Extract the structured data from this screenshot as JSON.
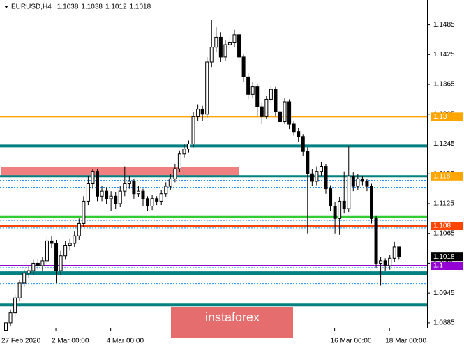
{
  "chart_data": {
    "type": "candlestick",
    "title": "EURUSD,H4",
    "open": [
      1.087,
      1.0885,
      1.0905,
      1.0935,
      1.0965,
      1.0985,
      1.099,
      1.1005,
      1.1,
      1.101,
      1.105,
      1.1045,
      1.099,
      1.102,
      1.104,
      1.1045,
      1.106,
      1.1085,
      1.113,
      1.1165,
      1.119,
      1.114,
      1.115,
      1.1135,
      1.114,
      1.1125,
      1.115,
      1.1165,
      1.117,
      1.1145,
      1.115,
      1.1135,
      1.112,
      1.1135,
      1.113,
      1.1145,
      1.116,
      1.1175,
      1.1195,
      1.1225,
      1.1235,
      1.1245,
      1.13,
      1.1315,
      1.1305,
      1.141,
      1.144,
      1.146,
      1.142,
      1.1445,
      1.145,
      1.1465,
      1.142,
      1.138,
      1.1345,
      1.136,
      1.132,
      1.13,
      1.1335,
      1.1355,
      1.131,
      1.129,
      1.133,
      1.1285,
      1.127,
      1.126,
      1.123,
      1.1185,
      1.117,
      1.119,
      1.12,
      1.1155,
      1.112,
      1.1095,
      1.113,
      1.1115,
      1.118,
      1.116,
      1.1175,
      1.117,
      1.116,
      1.1095,
      1.1005,
      1.101,
      1.1,
      1.1015,
      1.1038
    ],
    "high": [
      1.0893,
      1.0912,
      1.0942,
      1.0972,
      1.0992,
      1.1,
      1.1012,
      1.1013,
      1.1018,
      1.1058,
      1.106,
      1.1052,
      1.103,
      1.105,
      1.1055,
      1.107,
      1.1095,
      1.114,
      1.118,
      1.1195,
      1.1195,
      1.116,
      1.1158,
      1.115,
      1.1148,
      1.116,
      1.12,
      1.118,
      1.1175,
      1.116,
      1.1155,
      1.114,
      1.1142,
      1.114,
      1.1152,
      1.1168,
      1.1185,
      1.1205,
      1.1232,
      1.1245,
      1.1252,
      1.131,
      1.1325,
      1.1322,
      1.142,
      1.1495,
      1.148,
      1.147,
      1.1455,
      1.1462,
      1.1475,
      1.147,
      1.1425,
      1.1388,
      1.137,
      1.1365,
      1.1328,
      1.1342,
      1.1362,
      1.136,
      1.1318,
      1.1338,
      1.1335,
      1.1292,
      1.1278,
      1.1265,
      1.1238,
      1.1195,
      1.12,
      1.1208,
      1.1205,
      1.1162,
      1.1128,
      1.1138,
      1.119,
      1.124,
      1.1188,
      1.1185,
      1.118,
      1.1175,
      1.1165,
      1.11,
      1.1018,
      1.1015,
      1.1022,
      1.1048,
      1.1038
    ],
    "low": [
      1.0862,
      1.0878,
      1.0898,
      1.0928,
      1.0958,
      1.0975,
      1.0982,
      1.0992,
      1.099,
      1.1002,
      1.1035,
      1.0965,
      1.0982,
      1.1012,
      1.103,
      1.1038,
      1.1052,
      1.1078,
      1.1122,
      1.1155,
      1.113,
      1.113,
      1.1125,
      1.111,
      1.1115,
      1.1118,
      1.114,
      1.1155,
      1.1135,
      1.1138,
      1.112,
      1.111,
      1.1112,
      1.1122,
      1.1122,
      1.1138,
      1.1152,
      1.1168,
      1.1188,
      1.1218,
      1.1228,
      1.1238,
      1.1292,
      1.1292,
      1.1298,
      1.14,
      1.143,
      1.141,
      1.1412,
      1.1438,
      1.144,
      1.141,
      1.137,
      1.1335,
      1.1338,
      1.13,
      1.1285,
      1.1295,
      1.1328,
      1.13,
      1.128,
      1.1285,
      1.1275,
      1.1262,
      1.125,
      1.1222,
      1.1065,
      1.116,
      1.1162,
      1.118,
      1.1145,
      1.111,
      1.1065,
      1.1062,
      1.1105,
      1.1108,
      1.115,
      1.1152,
      1.1162,
      1.115,
      1.1085,
      1.0995,
      1.096,
      1.099,
      1.0992,
      1.1008,
      1.1012
    ],
    "close": [
      1.0885,
      1.0905,
      1.0935,
      1.0965,
      1.0985,
      1.099,
      1.1005,
      1.1,
      1.101,
      1.105,
      1.1045,
      1.099,
      1.102,
      1.104,
      1.1045,
      1.106,
      1.1085,
      1.113,
      1.1165,
      1.119,
      1.114,
      1.115,
      1.1135,
      1.114,
      1.1125,
      1.115,
      1.1165,
      1.117,
      1.1145,
      1.115,
      1.1135,
      1.112,
      1.1135,
      1.113,
      1.1145,
      1.116,
      1.1175,
      1.1195,
      1.1225,
      1.1235,
      1.1245,
      1.13,
      1.1315,
      1.1305,
      1.141,
      1.144,
      1.146,
      1.142,
      1.1445,
      1.145,
      1.1465,
      1.142,
      1.138,
      1.1345,
      1.136,
      1.132,
      1.13,
      1.1335,
      1.1355,
      1.131,
      1.129,
      1.133,
      1.1285,
      1.127,
      1.126,
      1.123,
      1.1185,
      1.117,
      1.119,
      1.12,
      1.1155,
      1.112,
      1.1095,
      1.113,
      1.1115,
      1.118,
      1.116,
      1.1175,
      1.117,
      1.116,
      1.1095,
      1.1005,
      1.101,
      1.1,
      1.1015,
      1.1038,
      1.1018
    ],
    "x_labels": [
      {
        "label": "27 Feb 2020",
        "index": 0
      },
      {
        "label": "2 Mar 00:00",
        "index": 11
      },
      {
        "label": "4 Mar 00:00",
        "index": 23
      },
      {
        "label": "16 Mar 00:00",
        "index": 72
      },
      {
        "label": "18 Mar 00:00",
        "index": 84
      }
    ],
    "ylim": [
      1.0875,
      1.1535
    ],
    "yticks": [
      1.1485,
      1.1425,
      1.1365,
      1.1305,
      1.1245,
      1.1185,
      1.1125,
      1.1065,
      1.1005,
      1.0945,
      1.0885
    ],
    "zone": {
      "low": 1.1182,
      "high": 1.1199,
      "from_index": 0,
      "to_index": 51,
      "color": "#f08080"
    },
    "levels": [
      {
        "value": 1.13,
        "color": "#ffa500",
        "width": 2,
        "tag": true,
        "tag_color": "#ffa500",
        "tag_text_color": "#ffffff"
      },
      {
        "value": 1.1241,
        "color": "#008080",
        "width": 4
      },
      {
        "value": 1.118,
        "color": "#008080",
        "width": 3,
        "tag": true,
        "tag_color": "#ffa500",
        "tag_text_color": "#ffffff"
      },
      {
        "value": 1.1098,
        "color": "#32cd32",
        "width": 3
      },
      {
        "value": 1.108,
        "color": "#ff4500",
        "width": 3,
        "tag": true,
        "tag_color": "#ff4500",
        "tag_text_color": "#ffffff"
      },
      {
        "value": 1.1,
        "color": "#9400d3",
        "width": 2,
        "tag": true,
        "tag_color": "#9400d3",
        "tag_text_color": "#ffffff"
      },
      {
        "value": 1.0985,
        "color": "#008080",
        "width": 5
      },
      {
        "value": 1.0921,
        "color": "#008080",
        "width": 4
      }
    ],
    "dotted_levels": [
      1.1172,
      1.1158,
      1.1091,
      1.1076,
      1.0996,
      1.0964,
      1.0929
    ],
    "dotted_color": "#1e90ff",
    "bull_color": "#ffffff",
    "bear_color": "#000000",
    "watermark": "instaforex"
  }
}
